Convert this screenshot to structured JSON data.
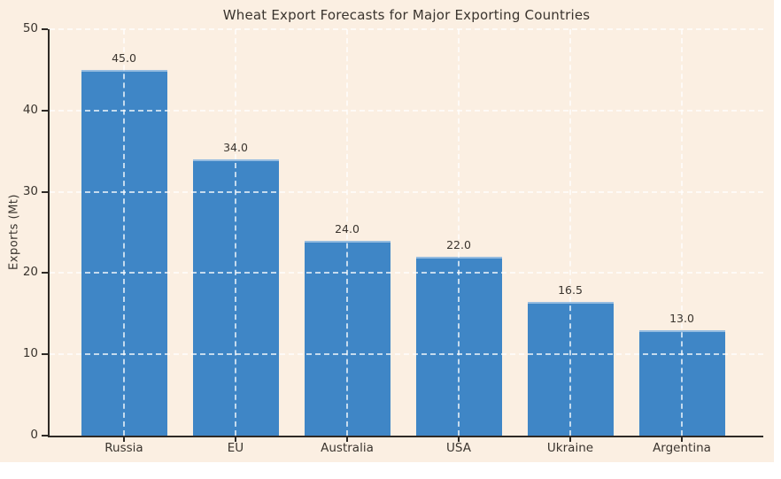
{
  "chart_data": {
    "type": "bar",
    "title": "Wheat Export Forecasts for Major Exporting Countries",
    "xlabel": "",
    "ylabel": "Exports (Mt)",
    "categories": [
      "Russia",
      "EU",
      "Australia",
      "USA",
      "Ukraine",
      "Argentina"
    ],
    "values": [
      45.0,
      34.0,
      24.0,
      22.0,
      16.5,
      13.0
    ],
    "bar_value_labels": [
      "45.0",
      "34.0",
      "24.0",
      "22.0",
      "16.5",
      "13.0"
    ],
    "ylim": [
      0,
      50
    ],
    "yticks": [
      0,
      10,
      20,
      30,
      40,
      50
    ],
    "grid": "dashed horizontal and vertical gridlines",
    "legend_position": "none",
    "colors": {
      "figure_background": "#FBEFE2",
      "bar_fill": "#3F86C6",
      "bar_top_highlight": "rgba(255,255,255,0.45)",
      "axis_spine": "#2E2A26",
      "text": "#3A342E",
      "gridline": "rgba(255,255,255,0.7)"
    }
  }
}
